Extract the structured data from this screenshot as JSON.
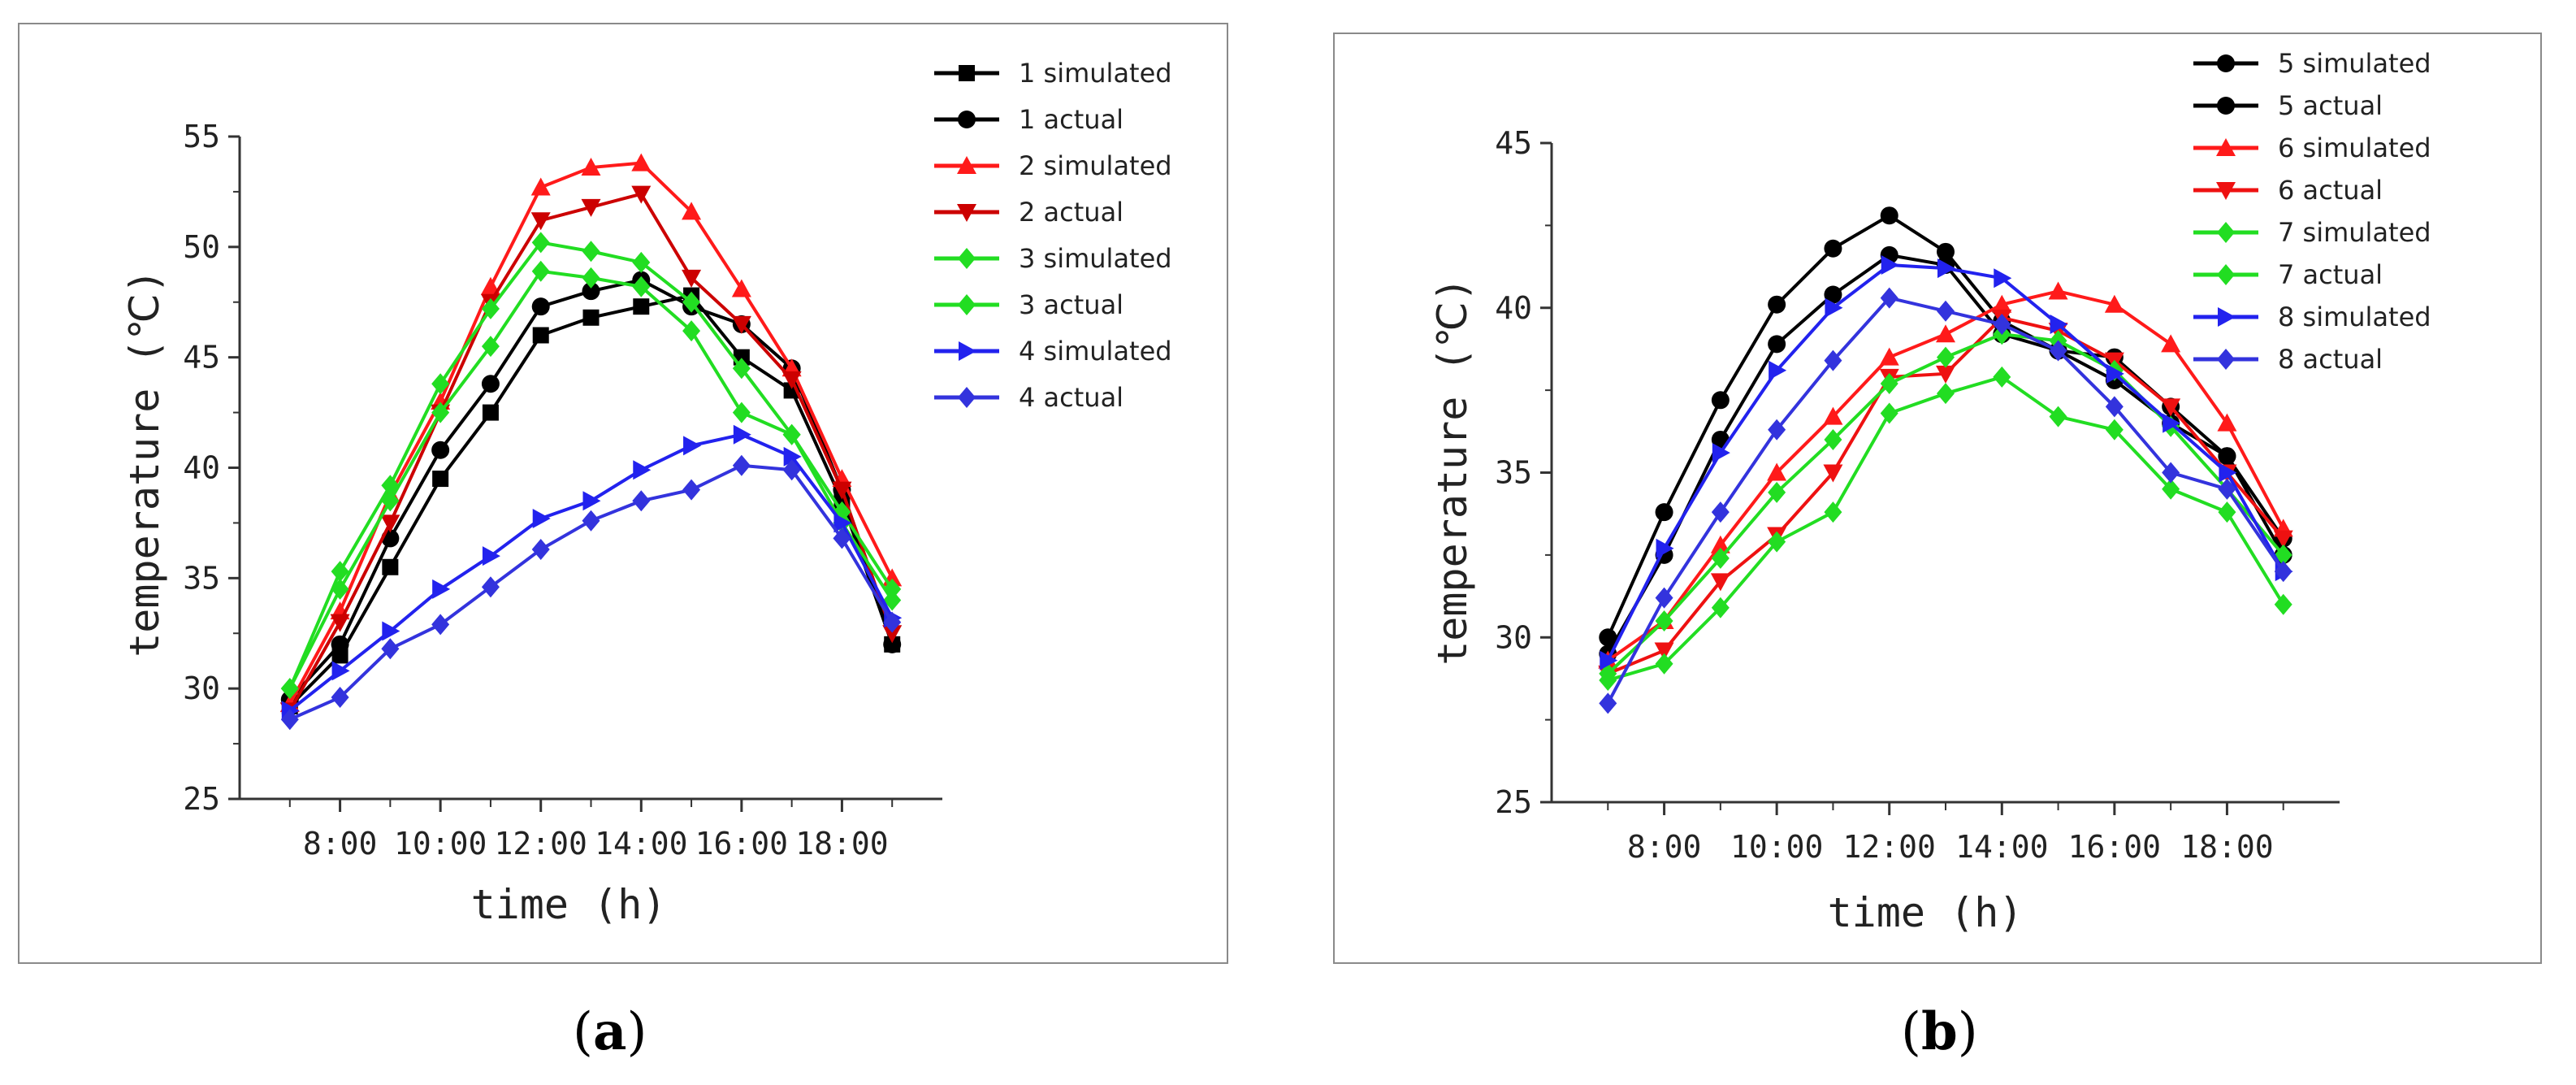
{
  "chart_data": [
    {
      "type": "line",
      "panel_label": "a",
      "xlabel": "time (h)",
      "ylabel": "temperature (℃)",
      "ylim": [
        25,
        55
      ],
      "yticks": [
        25,
        30,
        35,
        40,
        45,
        50,
        55
      ],
      "xlim": [
        6,
        20
      ],
      "xticks": [
        8,
        10,
        12,
        14,
        16,
        18
      ],
      "xtick_labels": [
        "8:00",
        "10:00",
        "12:00",
        "14:00",
        "16:00",
        "18:00"
      ],
      "x": [
        7,
        8,
        9,
        10,
        11,
        12,
        13,
        14,
        15,
        16,
        17,
        18,
        19
      ],
      "series": [
        {
          "name": "1 simulated",
          "color": "#000000",
          "marker": "square",
          "values": [
            29.2,
            31.5,
            35.5,
            39.5,
            42.5,
            46.0,
            46.8,
            47.3,
            47.8,
            45.0,
            43.5,
            38.5,
            32.0
          ]
        },
        {
          "name": "1 actual",
          "color": "#000000",
          "marker": "circle",
          "values": [
            29.5,
            32.0,
            36.8,
            40.8,
            43.8,
            47.3,
            48.0,
            48.5,
            47.3,
            46.5,
            44.5,
            39.0,
            32.0
          ]
        },
        {
          "name": "2 simulated",
          "color": "#ff1a1a",
          "marker": "triangle-up",
          "values": [
            29.3,
            33.5,
            38.8,
            43.0,
            48.2,
            52.7,
            53.6,
            53.8,
            51.6,
            48.1,
            44.5,
            39.5,
            35.0
          ]
        },
        {
          "name": "2 actual",
          "color": "#cc0000",
          "marker": "triangle-down",
          "values": [
            29.0,
            33.0,
            37.5,
            42.5,
            47.5,
            51.2,
            51.8,
            52.4,
            48.6,
            46.5,
            44.0,
            39.0,
            32.5
          ]
        },
        {
          "name": "3 simulated",
          "color": "#22dd22",
          "marker": "diamond",
          "values": [
            30.0,
            35.3,
            39.2,
            43.8,
            47.2,
            50.2,
            49.8,
            49.3,
            47.5,
            44.5,
            41.5,
            38.0,
            34.5
          ]
        },
        {
          "name": "3 actual",
          "color": "#22dd22",
          "marker": "diamond",
          "values": [
            30.0,
            34.5,
            38.5,
            42.5,
            45.5,
            48.9,
            48.6,
            48.2,
            46.2,
            42.5,
            41.5,
            37.5,
            34.0
          ]
        },
        {
          "name": "4 simulated",
          "color": "#2222ee",
          "marker": "triangle-right",
          "values": [
            29.0,
            30.8,
            32.6,
            34.5,
            36.0,
            37.7,
            38.5,
            39.9,
            41.0,
            41.5,
            40.5,
            37.5,
            33.2
          ]
        },
        {
          "name": "4 actual",
          "color": "#3333dd",
          "marker": "diamond",
          "values": [
            28.6,
            29.6,
            31.8,
            32.9,
            34.6,
            36.3,
            37.6,
            38.5,
            39.0,
            40.1,
            39.9,
            36.8,
            33.0
          ]
        }
      ]
    },
    {
      "type": "line",
      "panel_label": "b",
      "xlabel": "time (h)",
      "ylabel": "temperature (℃)",
      "ylim": [
        25,
        45
      ],
      "yticks": [
        25,
        30,
        35,
        40,
        45
      ],
      "xlim": [
        6,
        20
      ],
      "xticks": [
        8,
        10,
        12,
        14,
        16,
        18
      ],
      "xtick_labels": [
        "8:00",
        "10:00",
        "12:00",
        "14:00",
        "16:00",
        "18:00"
      ],
      "x": [
        7,
        8,
        9,
        10,
        11,
        12,
        13,
        14,
        15,
        16,
        17,
        18,
        19
      ],
      "series": [
        {
          "name": "5 simulated",
          "color": "#000000",
          "marker": "circle",
          "values": [
            30.0,
            33.8,
            37.2,
            40.1,
            41.8,
            42.8,
            41.7,
            39.6,
            38.7,
            37.8,
            36.5,
            35.5,
            33.0
          ]
        },
        {
          "name": "5 actual",
          "color": "#000000",
          "marker": "circle",
          "values": [
            29.5,
            32.5,
            36.0,
            38.9,
            40.4,
            41.6,
            41.3,
            39.2,
            38.7,
            38.5,
            37.0,
            35.5,
            32.5
          ]
        },
        {
          "name": "6 simulated",
          "color": "#ff1a1a",
          "marker": "triangle-up",
          "values": [
            29.3,
            30.5,
            32.8,
            35.0,
            36.7,
            38.5,
            39.2,
            40.1,
            40.5,
            40.1,
            38.9,
            36.5,
            33.3
          ]
        },
        {
          "name": "6 actual",
          "color": "#ee1111",
          "marker": "triangle-down",
          "values": [
            28.9,
            29.6,
            31.7,
            33.1,
            35.0,
            37.9,
            38.0,
            39.7,
            39.3,
            38.4,
            37.0,
            35.0,
            33.0
          ]
        },
        {
          "name": "7 simulated",
          "color": "#22dd22",
          "marker": "diamond",
          "values": [
            28.9,
            30.5,
            32.4,
            34.4,
            36.0,
            37.7,
            38.5,
            39.2,
            39.0,
            38.1,
            36.4,
            34.5,
            32.5
          ]
        },
        {
          "name": "7 actual",
          "color": "#22dd22",
          "marker": "diamond",
          "values": [
            28.7,
            29.2,
            30.9,
            32.9,
            33.8,
            36.8,
            37.4,
            37.9,
            36.7,
            36.3,
            34.5,
            33.8,
            31.0
          ]
        },
        {
          "name": "8 simulated",
          "color": "#2222ee",
          "marker": "triangle-right",
          "values": [
            29.3,
            32.7,
            35.6,
            38.1,
            40.0,
            41.3,
            41.2,
            40.9,
            39.5,
            38.0,
            36.5,
            35.0,
            32.0
          ]
        },
        {
          "name": "8 actual",
          "color": "#3333dd",
          "marker": "diamond",
          "values": [
            28.0,
            31.2,
            33.8,
            36.3,
            38.4,
            40.3,
            39.9,
            39.5,
            38.7,
            37.0,
            35.0,
            34.5,
            32.0
          ]
        }
      ]
    }
  ],
  "panel_labels": {
    "a": "a",
    "b": "b"
  }
}
